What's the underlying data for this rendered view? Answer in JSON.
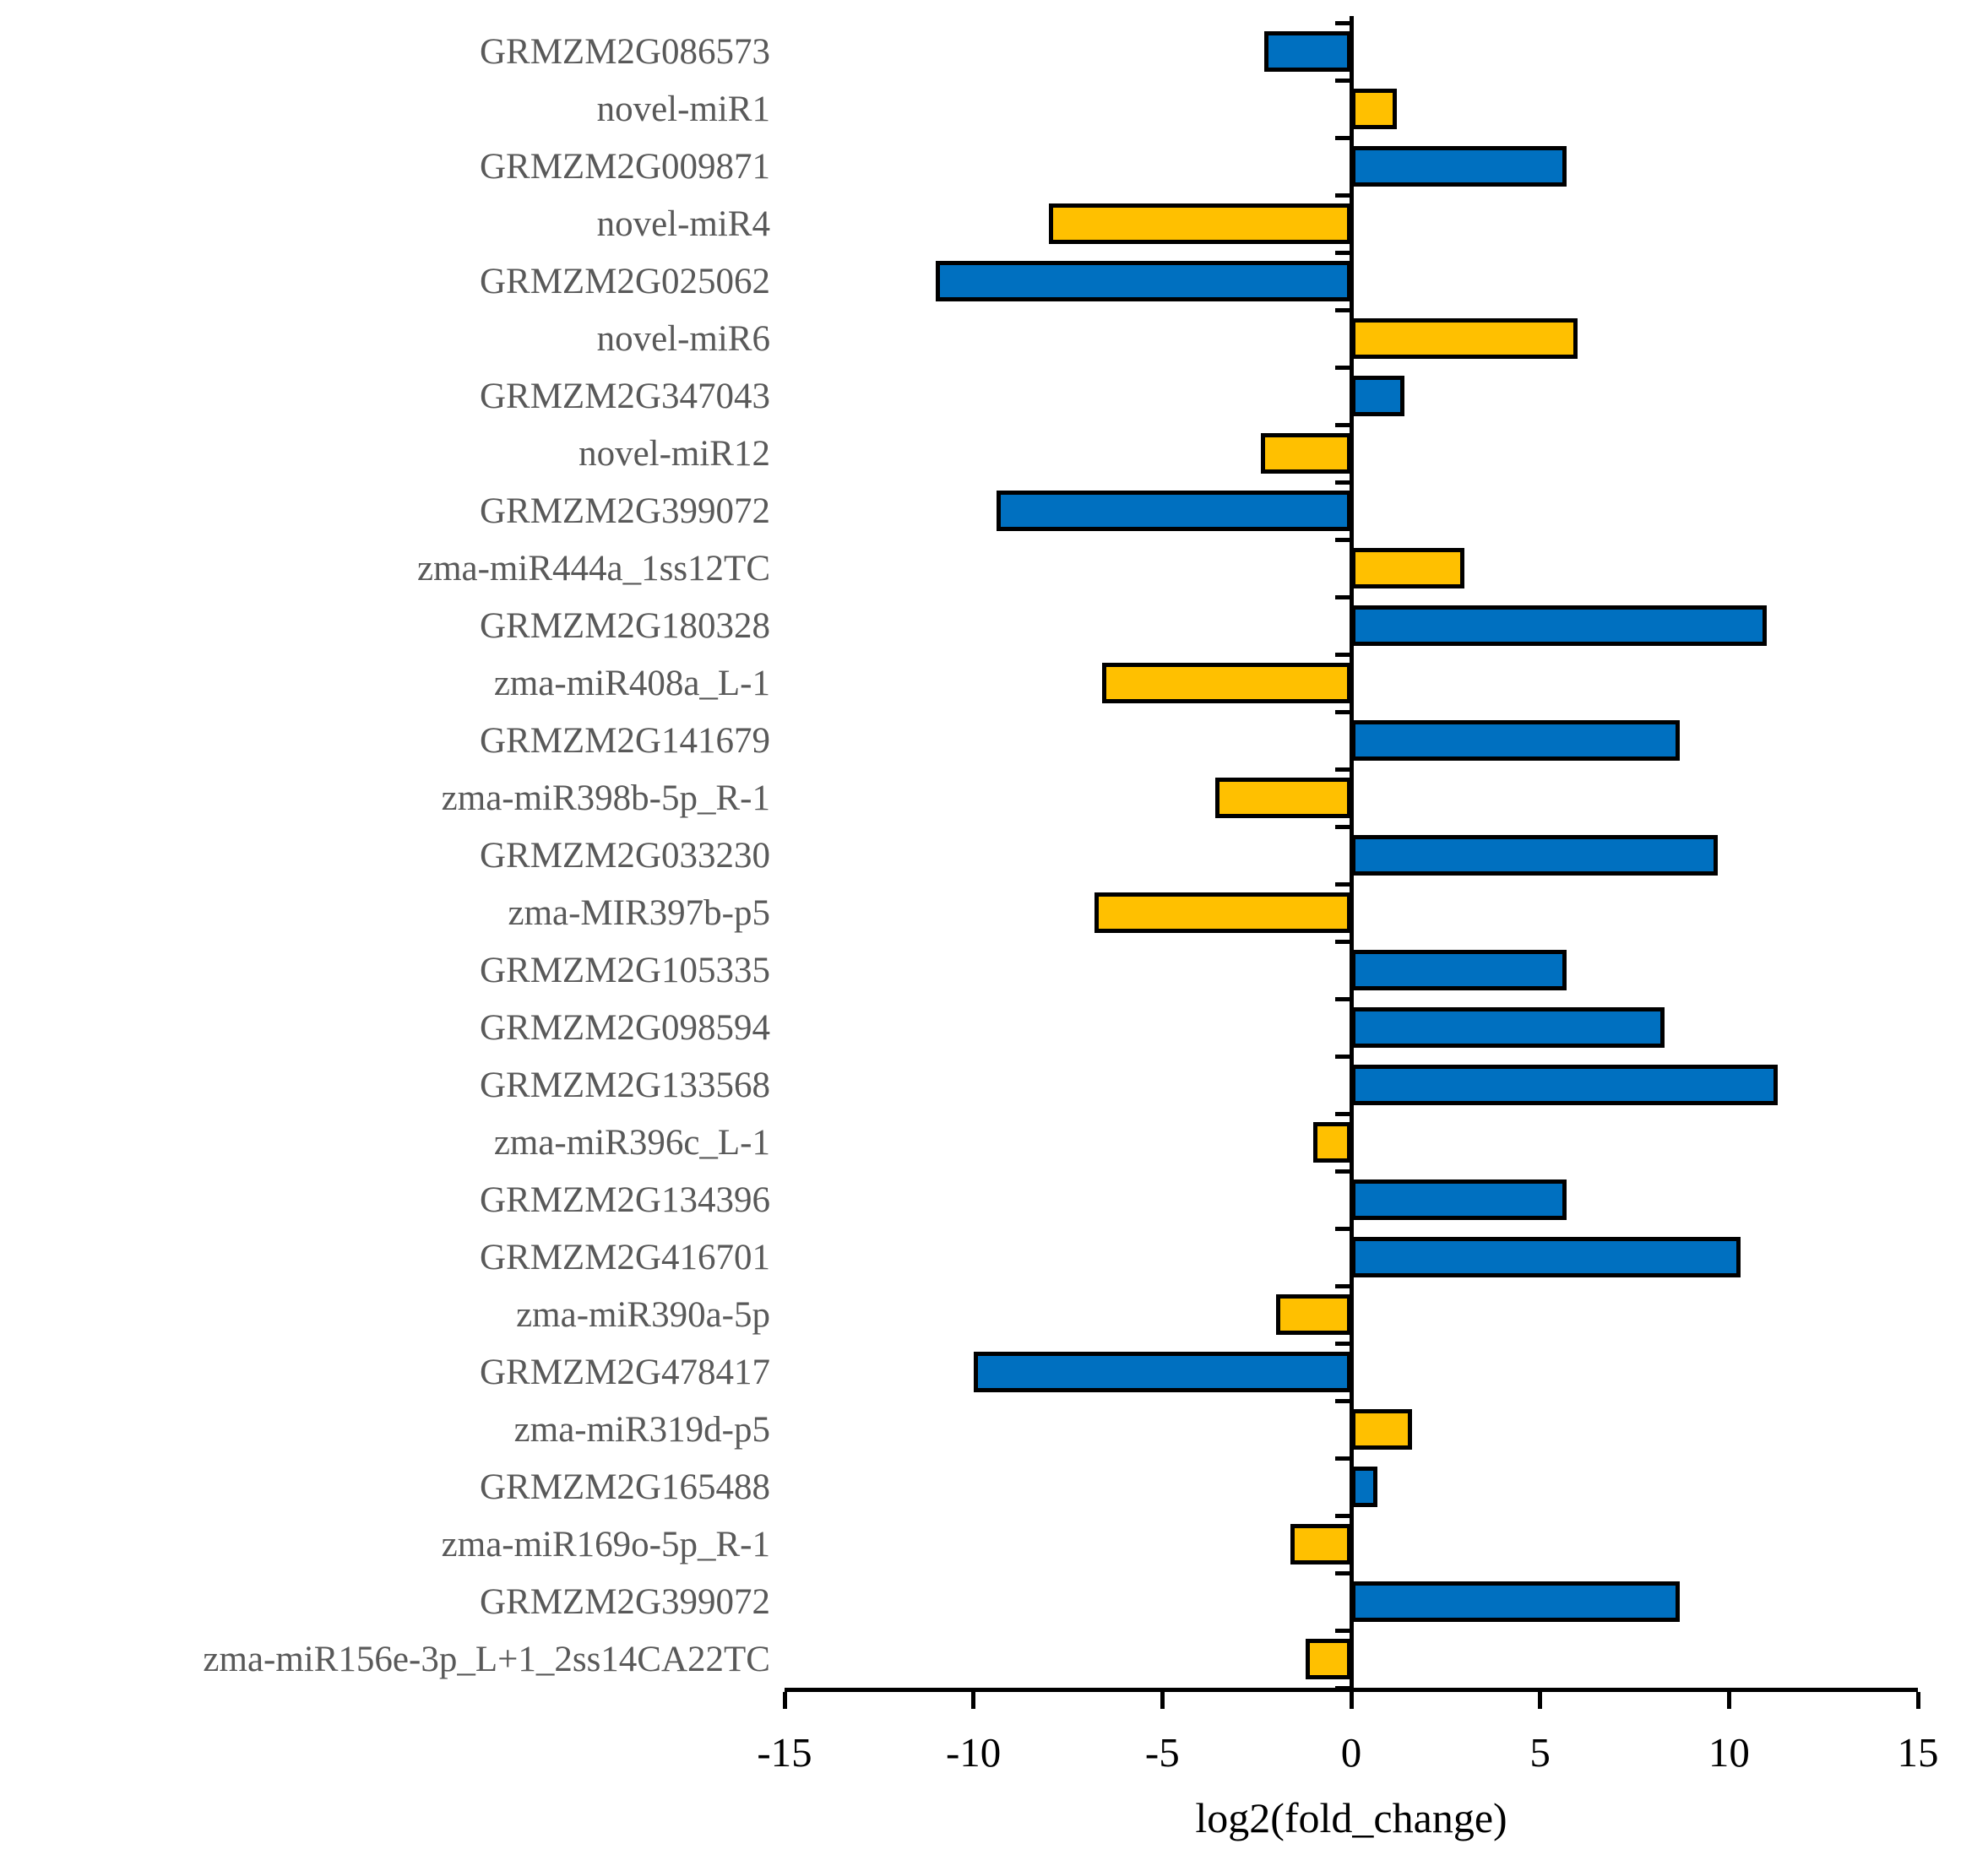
{
  "page": {
    "background": "#ffffff"
  },
  "chart_data": {
    "type": "bar",
    "orientation": "horizontal",
    "title": "",
    "xlabel": "log2(fold_change)",
    "ylabel": "",
    "xlim": [
      -15,
      15
    ],
    "x_ticks": [
      "-15",
      "-10",
      "-5",
      "0",
      "5",
      "10",
      "15"
    ],
    "x_tick_values": [
      -15,
      -10,
      -5,
      0,
      5,
      10,
      15
    ],
    "grid": false,
    "legend": false,
    "colors": {
      "gene_bar": "#0070C0",
      "mirna_bar": "#FFC000",
      "bar_outline": "#000000",
      "axis": "#000000",
      "category_label": "#595959",
      "tick_label": "#000000"
    },
    "items": [
      {
        "label": "GRMZM2G086573",
        "value": -2.3,
        "group": "gene"
      },
      {
        "label": "novel-miR1",
        "value": 1.2,
        "group": "mirna"
      },
      {
        "label": "GRMZM2G009871",
        "value": 5.7,
        "group": "gene"
      },
      {
        "label": "novel-miR4",
        "value": -8.0,
        "group": "mirna"
      },
      {
        "label": "GRMZM2G025062",
        "value": -11.0,
        "group": "gene"
      },
      {
        "label": "novel-miR6",
        "value": 6.0,
        "group": "mirna"
      },
      {
        "label": "GRMZM2G347043",
        "value": 1.4,
        "group": "gene"
      },
      {
        "label": "novel-miR12",
        "value": -2.4,
        "group": "mirna"
      },
      {
        "label": "GRMZM2G399072",
        "value": -9.4,
        "group": "gene"
      },
      {
        "label": "zma-miR444a_1ss12TC",
        "value": 3.0,
        "group": "mirna"
      },
      {
        "label": "GRMZM2G180328",
        "value": 11.0,
        "group": "gene"
      },
      {
        "label": "zma-miR408a_L-1",
        "value": -6.6,
        "group": "mirna"
      },
      {
        "label": "GRMZM2G141679",
        "value": 8.7,
        "group": "gene"
      },
      {
        "label": "zma-miR398b-5p_R-1",
        "value": -3.6,
        "group": "mirna"
      },
      {
        "label": "GRMZM2G033230",
        "value": 9.7,
        "group": "gene"
      },
      {
        "label": "zma-MIR397b-p5",
        "value": -6.8,
        "group": "mirna"
      },
      {
        "label": "GRMZM2G105335",
        "value": 5.7,
        "group": "gene"
      },
      {
        "label": "GRMZM2G098594",
        "value": 8.3,
        "group": "gene"
      },
      {
        "label": "GRMZM2G133568",
        "value": 11.3,
        "group": "gene"
      },
      {
        "label": "zma-miR396c_L-1",
        "value": -1.0,
        "group": "mirna"
      },
      {
        "label": "GRMZM2G134396",
        "value": 5.7,
        "group": "gene"
      },
      {
        "label": "GRMZM2G416701",
        "value": 10.3,
        "group": "gene"
      },
      {
        "label": "zma-miR390a-5p",
        "value": -2.0,
        "group": "mirna"
      },
      {
        "label": "GRMZM2G478417",
        "value": -10.0,
        "group": "gene"
      },
      {
        "label": "zma-miR319d-p5",
        "value": 1.6,
        "group": "mirna"
      },
      {
        "label": "GRMZM2G165488",
        "value": 0.7,
        "group": "gene"
      },
      {
        "label": "zma-miR169o-5p_R-1",
        "value": -1.6,
        "group": "mirna"
      },
      {
        "label": "GRMZM2G399072",
        "value": 8.7,
        "group": "gene"
      },
      {
        "label": "zma-miR156e-3p_L+1_2ss14CA22TC",
        "value": -1.2,
        "group": "mirna"
      }
    ]
  }
}
